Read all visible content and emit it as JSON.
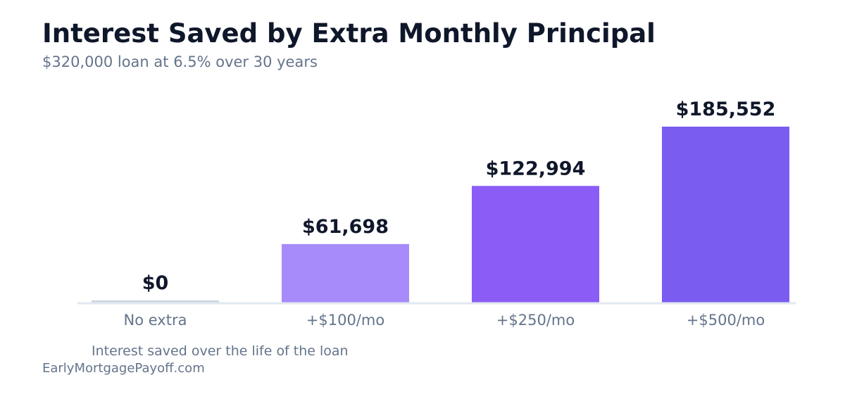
{
  "header": {
    "title": "Interest Saved by Extra Monthly Principal",
    "subtitle": "$320,000 loan at 6.5% over 30 years"
  },
  "footer": {
    "caption": "Interest saved over the life of the loan",
    "source": "EarlyMortgagePayoff.com"
  },
  "chart_data": {
    "type": "bar",
    "title": "Interest Saved by Extra Monthly Principal",
    "subtitle": "$320,000 loan at 6.5% over 30 years",
    "categories": [
      "No extra",
      "+$100/mo",
      "+$250/mo",
      "+$500/mo"
    ],
    "values": [
      0,
      61698,
      122994,
      185552
    ],
    "value_labels": [
      "$0",
      "$61,698",
      "$122,994",
      "$185,552"
    ],
    "bar_colors": [
      "#cbd5e1",
      "#a78bfa",
      "#8b5cf6",
      "#7a5cf0"
    ],
    "ylim": [
      0,
      210000
    ],
    "grid": false,
    "legend": "none",
    "colors": {
      "baseline": "#e2e8f0",
      "label_text": "#0f172a",
      "tick_text": "#64748b"
    }
  }
}
